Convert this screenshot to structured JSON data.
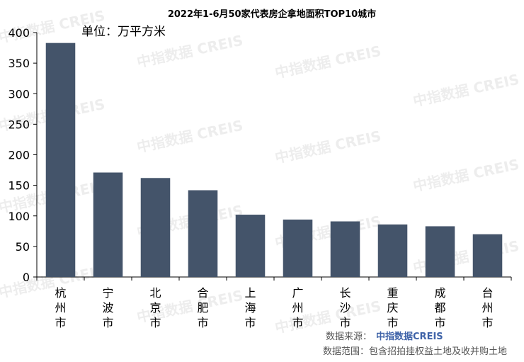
{
  "chart_data": {
    "type": "bar",
    "title": "2022年1-6月50家代表房企拿地面积TOP10城市",
    "unit_label": "单位：万平方米",
    "categories": [
      "杭州市",
      "宁波市",
      "北京市",
      "合肥市",
      "上海市",
      "广州市",
      "长沙市",
      "重庆市",
      "成都市",
      "台州市"
    ],
    "values": [
      383,
      171,
      162,
      142,
      102,
      94,
      91,
      86,
      83,
      70
    ],
    "ylim": [
      0,
      400
    ],
    "yticks": [
      0,
      50,
      100,
      150,
      200,
      250,
      300,
      350,
      400
    ],
    "bar_color": "#44546a",
    "grid": false,
    "legend": "none"
  },
  "watermark": "中指数据 CREIS",
  "source": {
    "label": "数据来源：",
    "brand": "中指数据CREIS",
    "scope": "数据范围：包含招拍挂权益土地及收并购土地"
  }
}
